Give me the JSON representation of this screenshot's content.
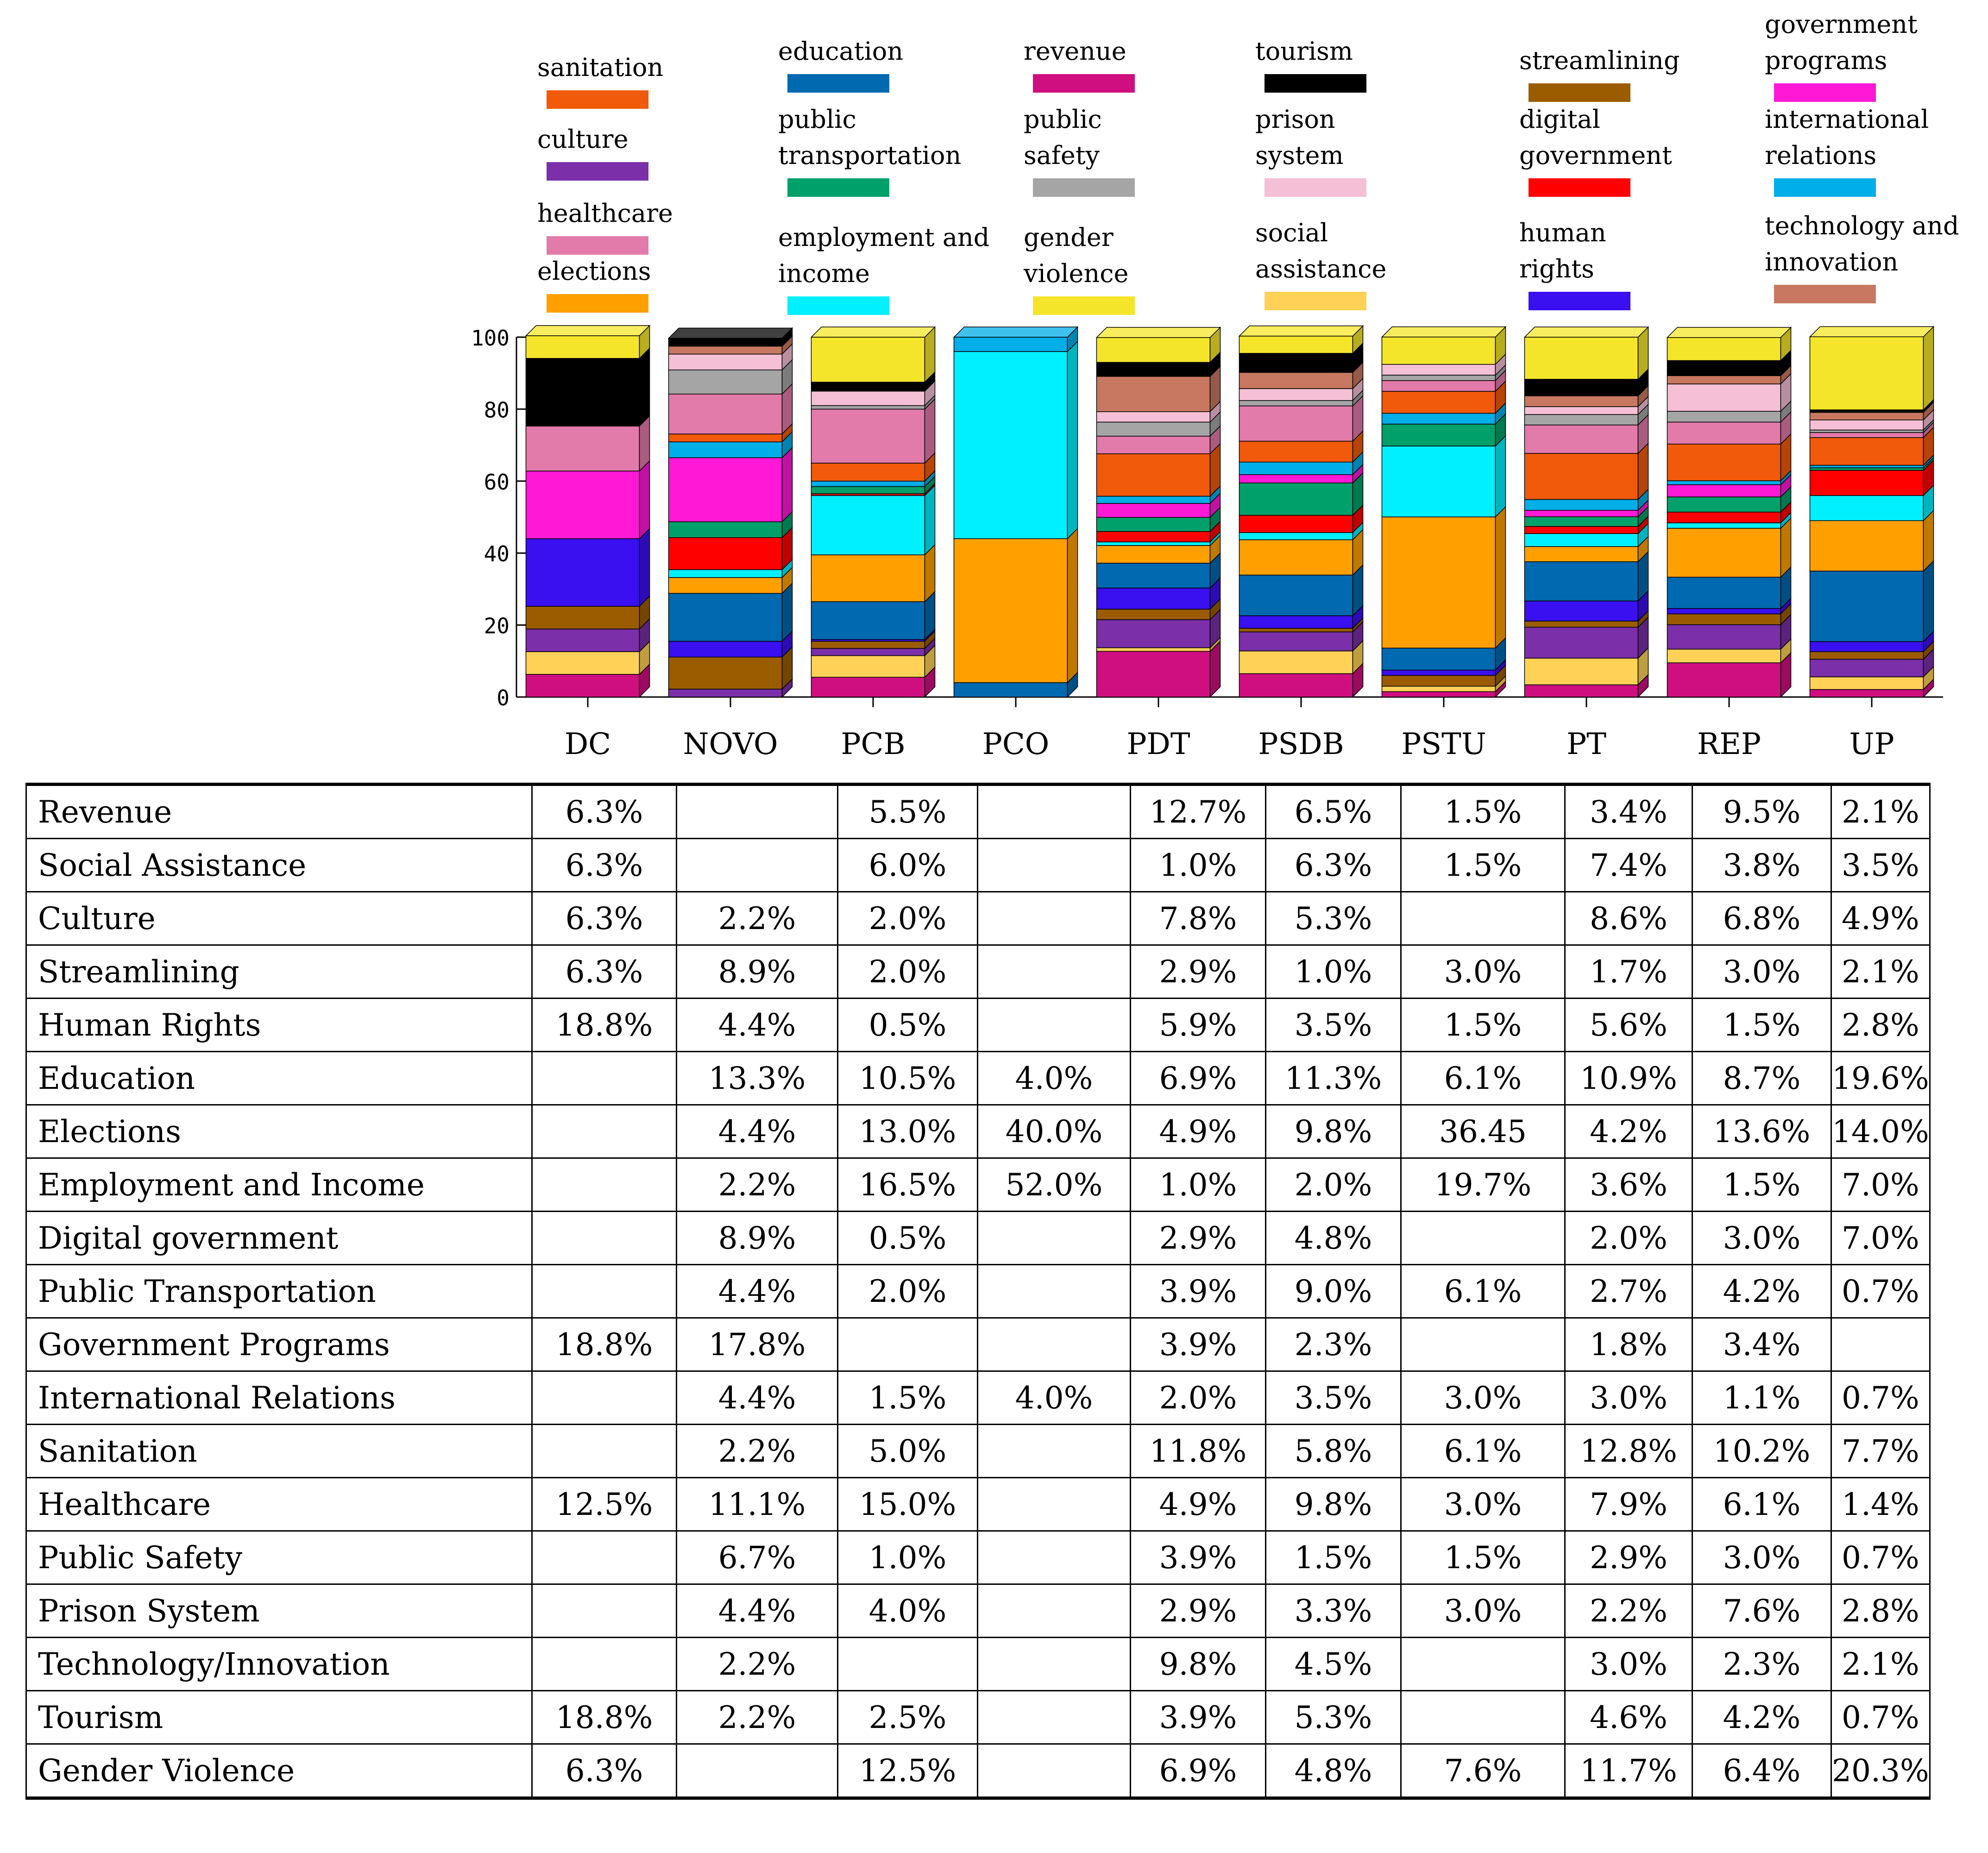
{
  "legend": [
    {
      "key": "sanitation",
      "label": "sanitation",
      "color": "#f05a0a"
    },
    {
      "key": "culture",
      "label": "culture",
      "color": "#7b2fa8"
    },
    {
      "key": "healthcare",
      "label": "healthcare",
      "color": "#e27aaa"
    },
    {
      "key": "elections",
      "label": "elections",
      "color": "#ffa000"
    },
    {
      "key": "education",
      "label": "education",
      "color": "#0069b0"
    },
    {
      "key": "public_transportation",
      "label": "public\ntransportation",
      "color": "#00a06a"
    },
    {
      "key": "employment_income",
      "label": "employment and\nincome",
      "color": "#00f0ff"
    },
    {
      "key": "revenue",
      "label": "revenue",
      "color": "#cf0f80"
    },
    {
      "key": "public_safety",
      "label": "public\nsafety",
      "color": "#a5a5a5"
    },
    {
      "key": "gender_violence",
      "label": "gender\nviolence",
      "color": "#f5e52a"
    },
    {
      "key": "tourism",
      "label": "tourism",
      "color": "#000000"
    },
    {
      "key": "prison_system",
      "label": "prison\nsystem",
      "color": "#f5bfd5"
    },
    {
      "key": "social_assistance",
      "label": "social\nassistance",
      "color": "#ffd257"
    },
    {
      "key": "streamlining",
      "label": "streamlining",
      "color": "#9b5c00"
    },
    {
      "key": "digital_government",
      "label": "digital\ngovernment",
      "color": "#ff0000"
    },
    {
      "key": "human_rights",
      "label": "human\nrights",
      "color": "#3a0ff0"
    },
    {
      "key": "government_programs",
      "label": "government\nprograms",
      "color": "#ff18d6"
    },
    {
      "key": "international_relations",
      "label": "international\nrelations",
      "color": "#00aee8"
    },
    {
      "key": "technology_innovation",
      "label": "technology and\ninnovation",
      "color": "#c87860"
    }
  ],
  "chart_data": {
    "type": "bar",
    "stacked": true,
    "categories": [
      "DC",
      "NOVO",
      "PCB",
      "PCO",
      "PDT",
      "PSDB",
      "PSTU",
      "PT",
      "REP",
      "UP"
    ],
    "ylim": [
      0,
      100
    ],
    "yticks": [
      "0",
      "20",
      "40",
      "60",
      "80",
      "100"
    ],
    "stack_order": [
      "revenue",
      "social_assistance",
      "culture",
      "streamlining",
      "human_rights",
      "education",
      "elections",
      "employment_income",
      "digital_government",
      "public_transportation",
      "government_programs",
      "international_relations",
      "sanitation",
      "healthcare",
      "public_safety",
      "prison_system",
      "technology_innovation",
      "tourism",
      "gender_violence"
    ],
    "series": [
      {
        "key": "revenue",
        "values": [
          6.3,
          0,
          5.5,
          0,
          12.7,
          6.5,
          1.5,
          3.4,
          9.5,
          2.1
        ]
      },
      {
        "key": "social_assistance",
        "values": [
          6.3,
          0,
          6.0,
          0,
          1.0,
          6.3,
          1.5,
          7.4,
          3.8,
          3.5
        ]
      },
      {
        "key": "culture",
        "values": [
          6.3,
          2.2,
          2.0,
          0,
          7.8,
          5.3,
          0,
          8.6,
          6.8,
          4.9
        ]
      },
      {
        "key": "streamlining",
        "values": [
          6.3,
          8.9,
          2.0,
          0,
          2.9,
          1.0,
          3.0,
          1.7,
          3.0,
          2.1
        ]
      },
      {
        "key": "human_rights",
        "values": [
          18.8,
          4.4,
          0.5,
          0,
          5.9,
          3.5,
          1.5,
          5.6,
          1.5,
          2.8
        ]
      },
      {
        "key": "education",
        "values": [
          0,
          13.3,
          10.5,
          4.0,
          6.9,
          11.3,
          6.1,
          10.9,
          8.7,
          19.6
        ]
      },
      {
        "key": "elections",
        "values": [
          0,
          4.4,
          13.0,
          40.0,
          4.9,
          9.8,
          36.45,
          4.2,
          13.6,
          14.0
        ]
      },
      {
        "key": "employment_income",
        "values": [
          0,
          2.2,
          16.5,
          52.0,
          1.0,
          2.0,
          19.7,
          3.6,
          1.5,
          7.0
        ]
      },
      {
        "key": "digital_government",
        "values": [
          0,
          8.9,
          0.5,
          0,
          2.9,
          4.8,
          0,
          2.0,
          3.0,
          7.0
        ]
      },
      {
        "key": "public_transportation",
        "values": [
          0,
          4.4,
          2.0,
          0,
          3.9,
          9.0,
          6.1,
          2.7,
          4.2,
          0.7
        ]
      },
      {
        "key": "government_programs",
        "values": [
          18.8,
          17.8,
          0,
          0,
          3.9,
          2.3,
          0,
          1.8,
          3.4,
          0
        ]
      },
      {
        "key": "international_relations",
        "values": [
          0,
          4.4,
          1.5,
          4.0,
          2.0,
          3.5,
          3.0,
          3.0,
          1.1,
          0.7
        ]
      },
      {
        "key": "sanitation",
        "values": [
          0,
          2.2,
          5.0,
          0,
          11.8,
          5.8,
          6.1,
          12.8,
          10.2,
          7.7
        ]
      },
      {
        "key": "healthcare",
        "values": [
          12.5,
          11.1,
          15.0,
          0,
          4.9,
          9.8,
          3.0,
          7.9,
          6.1,
          1.4
        ]
      },
      {
        "key": "public_safety",
        "values": [
          0,
          6.7,
          1.0,
          0,
          3.9,
          1.5,
          1.5,
          2.9,
          3.0,
          0.7
        ]
      },
      {
        "key": "prison_system",
        "values": [
          0,
          4.4,
          4.0,
          0,
          2.9,
          3.3,
          3.0,
          2.2,
          7.6,
          2.8
        ]
      },
      {
        "key": "technology_innovation",
        "values": [
          0,
          2.2,
          0,
          0,
          9.8,
          4.5,
          0,
          3.0,
          2.3,
          2.1
        ]
      },
      {
        "key": "tourism",
        "values": [
          18.8,
          2.2,
          2.5,
          0,
          3.9,
          5.3,
          0,
          4.6,
          4.2,
          0.7
        ]
      },
      {
        "key": "gender_violence",
        "values": [
          6.3,
          0,
          12.5,
          0,
          6.9,
          4.8,
          7.6,
          11.7,
          6.4,
          20.3
        ]
      }
    ]
  },
  "table": {
    "rows": [
      {
        "label": "Revenue",
        "cells": [
          "6.3%",
          "",
          "5.5%",
          "",
          "12.7%",
          "6.5%",
          "1.5%",
          "3.4%",
          "9.5%",
          "2.1%"
        ]
      },
      {
        "label": "Social Assistance",
        "cells": [
          "6.3%",
          "",
          "6.0%",
          "",
          "1.0%",
          "6.3%",
          "1.5%",
          "7.4%",
          "3.8%",
          "3.5%"
        ]
      },
      {
        "label": "Culture",
        "cells": [
          "6.3%",
          "2.2%",
          "2.0%",
          "",
          "7.8%",
          "5.3%",
          "",
          "8.6%",
          "6.8%",
          "4.9%"
        ]
      },
      {
        "label": "Streamlining",
        "cells": [
          "6.3%",
          "8.9%",
          "2.0%",
          "",
          "2.9%",
          "1.0%",
          "3.0%",
          "1.7%",
          "3.0%",
          "2.1%"
        ]
      },
      {
        "label": "Human Rights",
        "cells": [
          "18.8%",
          "4.4%",
          "0.5%",
          "",
          "5.9%",
          "3.5%",
          "1.5%",
          "5.6%",
          "1.5%",
          "2.8%"
        ]
      },
      {
        "label": "Education",
        "cells": [
          "",
          "13.3%",
          "10.5%",
          "4.0%",
          "6.9%",
          "11.3%",
          "6.1%",
          "10.9%",
          "8.7%",
          "19.6%"
        ]
      },
      {
        "label": "Elections",
        "cells": [
          "",
          "4.4%",
          "13.0%",
          "40.0%",
          "4.9%",
          "9.8%",
          "36.45",
          "4.2%",
          "13.6%",
          "14.0%"
        ]
      },
      {
        "label": "Employment and Income",
        "cells": [
          "",
          "2.2%",
          "16.5%",
          "52.0%",
          "1.0%",
          "2.0%",
          "19.7%",
          "3.6%",
          "1.5%",
          "7.0%"
        ]
      },
      {
        "label": "Digital government",
        "cells": [
          "",
          "8.9%",
          "0.5%",
          "",
          "2.9%",
          "4.8%",
          "",
          "2.0%",
          "3.0%",
          "7.0%"
        ]
      },
      {
        "label": "Public Transportation",
        "cells": [
          "",
          "4.4%",
          "2.0%",
          "",
          "3.9%",
          "9.0%",
          "6.1%",
          "2.7%",
          "4.2%",
          "0.7%"
        ]
      },
      {
        "label": "Government Programs",
        "cells": [
          "18.8%",
          "17.8%",
          "",
          "",
          "3.9%",
          "2.3%",
          "",
          "1.8%",
          "3.4%",
          ""
        ]
      },
      {
        "label": "International Relations",
        "cells": [
          "",
          "4.4%",
          "1.5%",
          "4.0%",
          "2.0%",
          "3.5%",
          "3.0%",
          "3.0%",
          "1.1%",
          "0.7%"
        ]
      },
      {
        "label": "Sanitation",
        "cells": [
          "",
          "2.2%",
          "5.0%",
          "",
          "11.8%",
          "5.8%",
          "6.1%",
          "12.8%",
          "10.2%",
          "7.7%"
        ]
      },
      {
        "label": "Healthcare",
        "cells": [
          "12.5%",
          "11.1%",
          "15.0%",
          "",
          "4.9%",
          "9.8%",
          "3.0%",
          "7.9%",
          "6.1%",
          "1.4%"
        ]
      },
      {
        "label": "Public Safety",
        "cells": [
          "",
          "6.7%",
          "1.0%",
          "",
          "3.9%",
          "1.5%",
          "1.5%",
          "2.9%",
          "3.0%",
          "0.7%"
        ]
      },
      {
        "label": "Prison System",
        "cells": [
          "",
          "4.4%",
          "4.0%",
          "",
          "2.9%",
          "3.3%",
          "3.0%",
          "2.2%",
          "7.6%",
          "2.8%"
        ]
      },
      {
        "label": "Technology/Innovation",
        "cells": [
          "",
          "2.2%",
          "",
          "",
          "9.8%",
          "4.5%",
          "",
          "3.0%",
          "2.3%",
          "2.1%"
        ]
      },
      {
        "label": "Tourism",
        "cells": [
          "18.8%",
          "2.2%",
          "2.5%",
          "",
          "3.9%",
          "5.3%",
          "",
          "4.6%",
          "4.2%",
          "0.7%"
        ]
      },
      {
        "label": "Gender Violence",
        "cells": [
          "6.3%",
          "",
          "12.5%",
          "",
          "6.9%",
          "4.8%",
          "7.6%",
          "11.7%",
          "6.4%",
          "20.3%"
        ]
      }
    ]
  }
}
